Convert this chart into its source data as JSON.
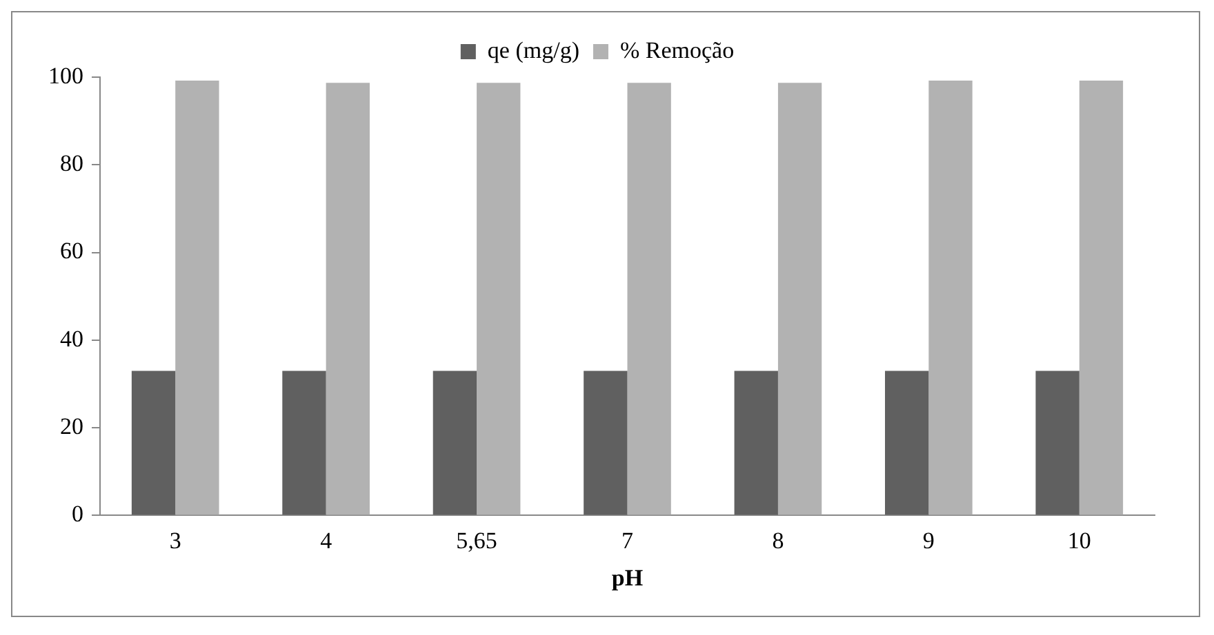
{
  "chart_data": {
    "type": "bar",
    "xlabel": "pH",
    "categories": [
      "3",
      "4",
      "5,65",
      "7",
      "8",
      "9",
      "10"
    ],
    "series": [
      {
        "name": "qe (mg/g)",
        "color": "#606060",
        "values": [
          33,
          33,
          33,
          33,
          33,
          33,
          33
        ]
      },
      {
        "name": "% Remoção",
        "color": "#b2b2b2",
        "values": [
          99.2,
          98.7,
          98.7,
          98.7,
          98.7,
          99.2,
          99.2
        ]
      }
    ],
    "ylim": [
      0,
      100
    ],
    "yticks": [
      0,
      20,
      40,
      60,
      80,
      100
    ],
    "grid": false,
    "legend": "top"
  }
}
